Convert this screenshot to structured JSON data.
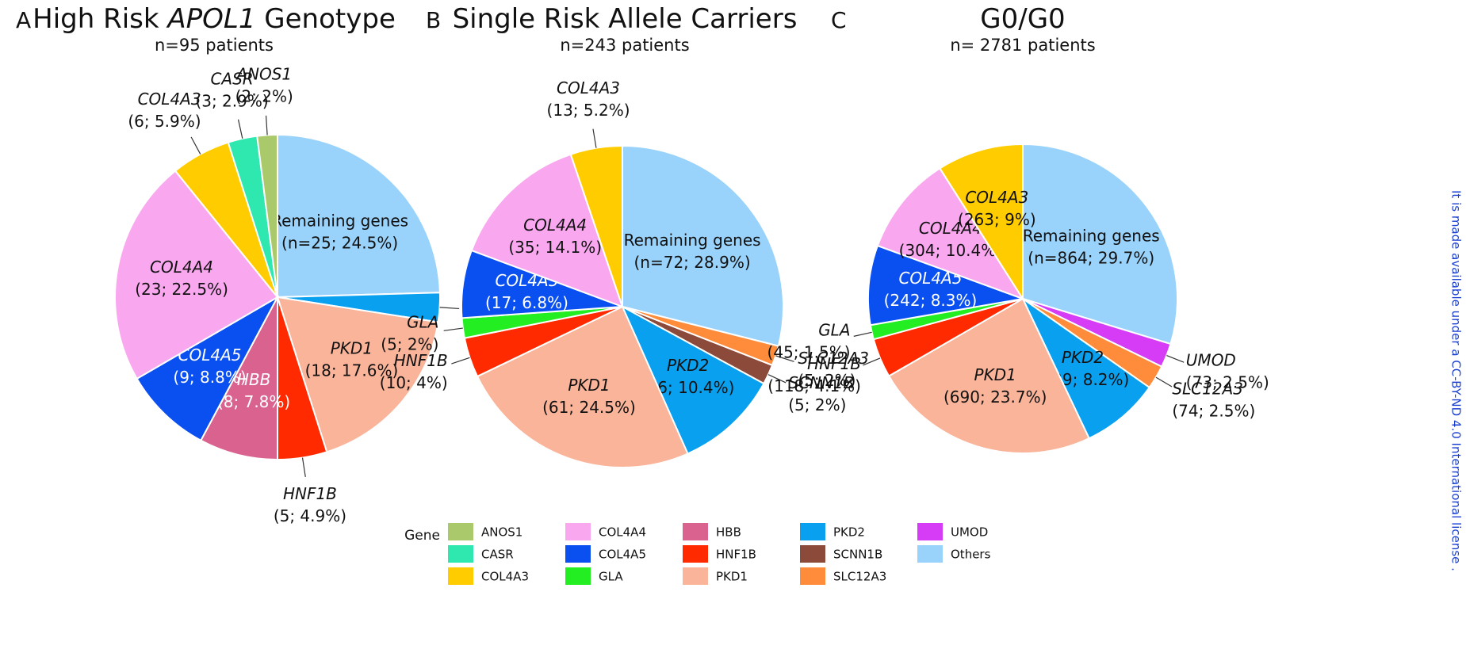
{
  "chart_data": [
    {
      "type": "pie",
      "panel": "A",
      "title_parts": [
        {
          "text": "High Risk "
        },
        {
          "text": "APOL1",
          "italic": true
        },
        {
          "text": " Genotype"
        }
      ],
      "subtitle": "n=95 patients",
      "categories": [
        "Remaining genes",
        "PKD2",
        "PKD1",
        "HNF1B",
        "HBB",
        "COL4A5",
        "COL4A4",
        "COL4A3",
        "CASR",
        "ANOS1"
      ],
      "values": [
        24.5,
        2.9,
        17.6,
        4.9,
        7.8,
        8.8,
        22.5,
        5.9,
        2.9,
        2
      ],
      "value_labels": [
        "(n=25; 24.5%)",
        "(3; 2.9%)",
        "(18; 17.6%)",
        "(5; 4.9%)",
        "(8; 7.8%)",
        "(9; 8.8%)",
        "(23; 22.5%)",
        "(6; 5.9%)",
        "(3; 2.9%)",
        "(2; 2%)"
      ],
      "colors": [
        "#99d2fa",
        "#0aa0f0",
        "#f9b49a",
        "#ff2a00",
        "#d9628f",
        "#0a4ff0",
        "#f9a8f0",
        "#ffcc00",
        "#2ee8b0",
        "#a9c96a"
      ]
    },
    {
      "type": "pie",
      "panel": "B",
      "title_parts": [
        {
          "text": "Single Risk Allele Carriers"
        }
      ],
      "subtitle": "n=243 patients",
      "categories": [
        "Remaining genes",
        "SLC12A3",
        "SCNN1B",
        "PKD2",
        "PKD1",
        "HNF1B",
        "GLA",
        "COL4A5",
        "COL4A4",
        "COL4A3"
      ],
      "values": [
        28.9,
        2,
        2,
        10.4,
        24.5,
        4,
        2,
        6.8,
        14.1,
        5.2
      ],
      "value_labels": [
        "(n=72; 28.9%)",
        "(5; 2%)",
        "(5; 2%)",
        "(26; 10.4%)",
        "(61; 24.5%)",
        "(10; 4%)",
        "(5; 2%)",
        "(17; 6.8%)",
        "(35; 14.1%)",
        "(13; 5.2%)"
      ],
      "colors": [
        "#99d2fa",
        "#ff8c3a",
        "#8b4a3a",
        "#0aa0f0",
        "#f9b49a",
        "#ff2a00",
        "#22ee22",
        "#0a4ff0",
        "#f9a8f0",
        "#ffcc00"
      ]
    },
    {
      "type": "pie",
      "panel": "C",
      "title_parts": [
        {
          "text": "G0/G0"
        }
      ],
      "subtitle": "n= 2781 patients",
      "categories": [
        "Remaining genes",
        "UMOD",
        "SLC12A3",
        "PKD2",
        "PKD1",
        "HNF1B",
        "GLA",
        "COL4A5",
        "COL4A4",
        "COL4A3"
      ],
      "values": [
        29.7,
        2.5,
        2.5,
        8.2,
        23.7,
        4.1,
        1.5,
        8.3,
        10.4,
        9
      ],
      "value_labels": [
        "(n=864; 29.7%)",
        "(73; 2.5%)",
        "(74; 2.5%)",
        "(239; 8.2%)",
        "(690; 23.7%)",
        "(118; 4.1%)",
        "(45; 1.5%)",
        "(242; 8.3%)",
        "(304; 10.4%)",
        "(263; 9%)"
      ],
      "colors": [
        "#99d2fa",
        "#d63cf5",
        "#ff8c3a",
        "#0aa0f0",
        "#f9b49a",
        "#ff2a00",
        "#22ee22",
        "#0a4ff0",
        "#f9a8f0",
        "#ffcc00"
      ]
    }
  ],
  "legend": {
    "title": "Gene",
    "items": [
      {
        "name": "ANOS1",
        "color": "#a9c96a"
      },
      {
        "name": "CASR",
        "color": "#2ee8b0"
      },
      {
        "name": "COL4A3",
        "color": "#ffcc00"
      },
      {
        "name": "COL4A4",
        "color": "#f9a8f0"
      },
      {
        "name": "COL4A5",
        "color": "#0a4ff0"
      },
      {
        "name": "GLA",
        "color": "#22ee22"
      },
      {
        "name": "HBB",
        "color": "#d9628f"
      },
      {
        "name": "HNF1B",
        "color": "#ff2a00"
      },
      {
        "name": "PKD1",
        "color": "#f9b49a"
      },
      {
        "name": "PKD2",
        "color": "#0aa0f0"
      },
      {
        "name": "SCNN1B",
        "color": "#8b4a3a"
      },
      {
        "name": "SLC12A3",
        "color": "#ff8c3a"
      },
      {
        "name": "UMOD",
        "color": "#d63cf5"
      },
      {
        "name": "Others",
        "color": "#99d2fa"
      }
    ]
  },
  "side_note": "It is made available under a CC-BY-ND 4.0 International license ."
}
